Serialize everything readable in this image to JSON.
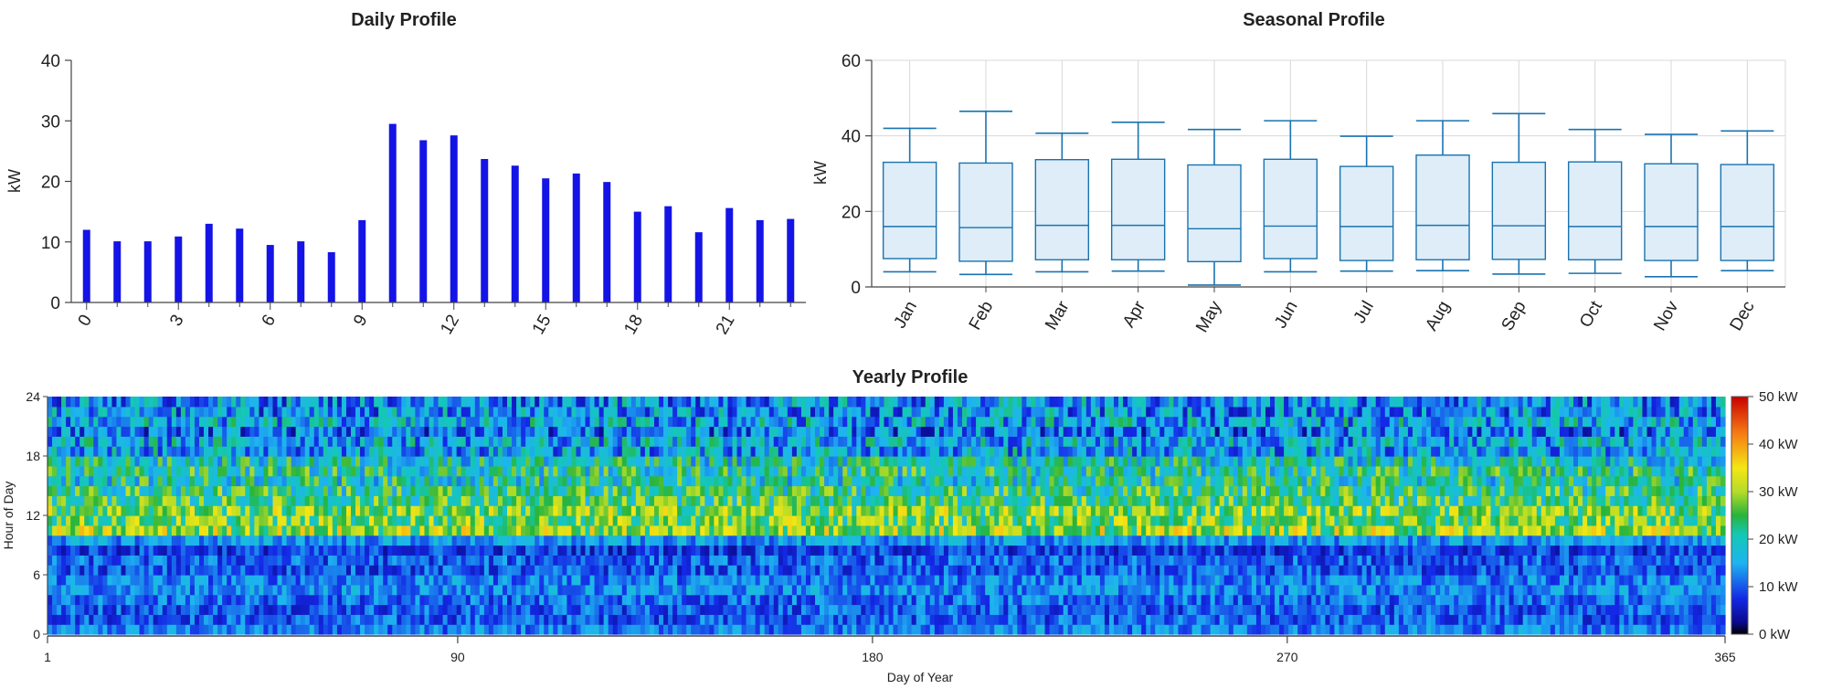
{
  "colors": {
    "bar": "#1414e6",
    "box_stroke": "#1a73b0",
    "box_fill": "#deedf8",
    "grid": "#d8d8d8",
    "axis": "#444444"
  },
  "chart_data": [
    {
      "type": "bar",
      "title": "Daily Profile",
      "xlabel": "",
      "ylabel": "kW",
      "ylim": [
        0,
        40
      ],
      "yticks": [
        "0",
        "10",
        "20",
        "30",
        "40"
      ],
      "xtick_labels": [
        "0",
        "3",
        "6",
        "9",
        "12",
        "15",
        "18",
        "21"
      ],
      "categories": [
        0,
        1,
        2,
        3,
        4,
        5,
        6,
        7,
        8,
        9,
        10,
        11,
        12,
        13,
        14,
        15,
        16,
        17,
        18,
        19,
        20,
        21,
        22,
        23
      ],
      "values": [
        12,
        10.1,
        10.1,
        10.9,
        13,
        12.2,
        9.5,
        10.1,
        8.3,
        13.6,
        29.5,
        26.8,
        27.6,
        23.7,
        22.6,
        20.5,
        21.3,
        19.9,
        15,
        15.9,
        11.6,
        15.6,
        13.6,
        13.8
      ]
    },
    {
      "type": "box",
      "title": "Seasonal Profile",
      "xlabel": "",
      "ylabel": "kW",
      "ylim": [
        0,
        60
      ],
      "yticks": [
        "0",
        "20",
        "40",
        "60"
      ],
      "categories": [
        "Jan",
        "Feb",
        "Mar",
        "Apr",
        "May",
        "Jun",
        "Jul",
        "Aug",
        "Sep",
        "Oct",
        "Nov",
        "Dec"
      ],
      "boxes": [
        {
          "min": 4,
          "q1": 7.5,
          "median": 16,
          "q3": 33,
          "max": 42
        },
        {
          "min": 3.3,
          "q1": 6.8,
          "median": 15.7,
          "q3": 32.8,
          "max": 46.5
        },
        {
          "min": 4,
          "q1": 7.2,
          "median": 16.3,
          "q3": 33.7,
          "max": 40.7
        },
        {
          "min": 4.2,
          "q1": 7.2,
          "median": 16.3,
          "q3": 33.8,
          "max": 43.6
        },
        {
          "min": 0.5,
          "q1": 6.7,
          "median": 15.4,
          "q3": 32.3,
          "max": 41.7
        },
        {
          "min": 4,
          "q1": 7.5,
          "median": 16.1,
          "q3": 33.8,
          "max": 44
        },
        {
          "min": 4.2,
          "q1": 7,
          "median": 16,
          "q3": 31.9,
          "max": 39.9
        },
        {
          "min": 4.3,
          "q1": 7.2,
          "median": 16.3,
          "q3": 34.9,
          "max": 44
        },
        {
          "min": 3.4,
          "q1": 7.3,
          "median": 16.2,
          "q3": 33,
          "max": 45.9
        },
        {
          "min": 3.6,
          "q1": 7.2,
          "median": 16,
          "q3": 33.1,
          "max": 41.7
        },
        {
          "min": 2.7,
          "q1": 7,
          "median": 16,
          "q3": 32.6,
          "max": 40.4
        },
        {
          "min": 4.3,
          "q1": 7,
          "median": 16,
          "q3": 32.4,
          "max": 41.3
        }
      ]
    },
    {
      "type": "heatmap",
      "title": "Yearly Profile",
      "xlabel": "Day of Year",
      "ylabel": "Hour of Day",
      "xlim": [
        1,
        365
      ],
      "ylim": [
        0,
        24
      ],
      "xticks": [
        "1",
        "90",
        "180",
        "270",
        "365"
      ],
      "yticks": [
        "0",
        "6",
        "12",
        "18",
        "24"
      ],
      "colorbar": {
        "range_kw": [
          0,
          50
        ],
        "labels": [
          "0 kW",
          "10 kW",
          "20 kW",
          "30 kW",
          "40 kW",
          "50 kW"
        ]
      },
      "values_description_kw": {
        "hours_0_to_10": "mostly 5-12 kW (blue)",
        "hours_10_to_12": "about 25-32 kW (yellow)",
        "hours_12_to_17": "about 18-28 kW (green/yellow)",
        "hours_17_to_24": "about 12-18 kW (cyan)"
      },
      "hourly_mean_kw": [
        12,
        10.1,
        10.1,
        10.9,
        13,
        12.2,
        9.5,
        10.1,
        8.3,
        13.6,
        29.5,
        26.8,
        27.6,
        23.7,
        22.6,
        20.5,
        21.3,
        19.9,
        15,
        15.9,
        11.6,
        15.6,
        13.6,
        13.8
      ]
    }
  ]
}
